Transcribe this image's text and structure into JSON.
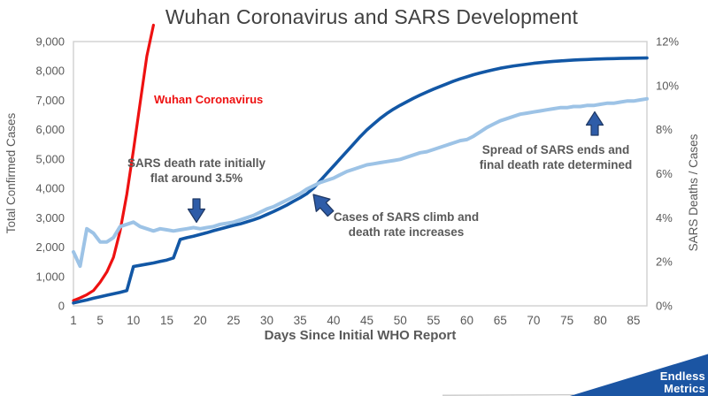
{
  "page": {
    "title": "Wuhan Coronavirus and SARS Development"
  },
  "chart_data": {
    "type": "line",
    "title": "Wuhan Coronavirus and SARS Development",
    "xlabel": "Days Since Initial WHO Report",
    "ylabel_left": "Total Confirmed Cases",
    "ylabel_right": "SARS Deaths / Cases",
    "xlim": [
      1,
      87
    ],
    "x_ticks": [
      1,
      5,
      10,
      15,
      20,
      25,
      30,
      35,
      40,
      45,
      50,
      55,
      60,
      65,
      70,
      75,
      80,
      85
    ],
    "ylim_left": [
      0,
      9000
    ],
    "y_step_left": 1000,
    "y_ticks_left": [
      "0",
      "1,000",
      "2,000",
      "3,000",
      "4,000",
      "5,000",
      "6,000",
      "7,000",
      "8,000",
      "9,000"
    ],
    "ylim_right": [
      0,
      12
    ],
    "y_step_right": 2,
    "y_ticks_right": [
      "0%",
      "2%",
      "4%",
      "6%",
      "8%",
      "10%",
      "12%"
    ],
    "grid": false,
    "legend": "none",
    "series": [
      {
        "id": "wuhan-coronavirus",
        "name": "Wuhan Coronavirus",
        "axis": "left",
        "color": "#EE1111",
        "stroke_width": 3.2,
        "x_start": 1,
        "values": [
          180,
          270,
          380,
          520,
          800,
          1150,
          1650,
          2550,
          3800,
          5300,
          6900,
          8500,
          9560
        ]
      },
      {
        "id": "sars-cases",
        "name": "SARS Total Confirmed Cases",
        "axis": "left",
        "color": "#1257A5",
        "stroke_width": 3.6,
        "x_start": 1,
        "values": [
          100,
          150,
          200,
          260,
          310,
          360,
          410,
          460,
          520,
          1340,
          1380,
          1420,
          1460,
          1510,
          1560,
          1630,
          2260,
          2320,
          2370,
          2430,
          2490,
          2560,
          2620,
          2680,
          2740,
          2790,
          2860,
          2930,
          3010,
          3110,
          3210,
          3320,
          3430,
          3560,
          3680,
          3820,
          4010,
          4260,
          4510,
          4760,
          5010,
          5260,
          5510,
          5760,
          5990,
          6190,
          6380,
          6550,
          6700,
          6830,
          6950,
          7070,
          7180,
          7280,
          7380,
          7470,
          7560,
          7650,
          7730,
          7800,
          7870,
          7930,
          7990,
          8040,
          8090,
          8130,
          8170,
          8200,
          8230,
          8260,
          8285,
          8305,
          8325,
          8340,
          8355,
          8370,
          8380,
          8390,
          8400,
          8408,
          8415,
          8420,
          8425,
          8430,
          8435,
          8438,
          8440
        ]
      },
      {
        "id": "sars-death-rate",
        "name": "SARS Deaths / Cases (%)",
        "axis": "right",
        "color": "#9DC3E6",
        "stroke_width": 4,
        "x_start": 1,
        "values": [
          2.45,
          1.8,
          3.5,
          3.3,
          2.9,
          2.9,
          3.1,
          3.6,
          3.7,
          3.8,
          3.6,
          3.5,
          3.4,
          3.5,
          3.45,
          3.4,
          3.45,
          3.5,
          3.55,
          3.5,
          3.55,
          3.6,
          3.7,
          3.75,
          3.8,
          3.9,
          4.0,
          4.1,
          4.25,
          4.4,
          4.5,
          4.65,
          4.8,
          4.95,
          5.1,
          5.3,
          5.45,
          5.6,
          5.7,
          5.8,
          5.95,
          6.1,
          6.2,
          6.3,
          6.4,
          6.45,
          6.5,
          6.55,
          6.6,
          6.65,
          6.75,
          6.85,
          6.95,
          7.0,
          7.1,
          7.2,
          7.3,
          7.4,
          7.5,
          7.55,
          7.7,
          7.9,
          8.1,
          8.25,
          8.4,
          8.5,
          8.6,
          8.7,
          8.75,
          8.8,
          8.85,
          8.9,
          8.95,
          9.0,
          9.0,
          9.05,
          9.05,
          9.1,
          9.1,
          9.15,
          9.2,
          9.2,
          9.25,
          9.3,
          9.3,
          9.35,
          9.4
        ]
      }
    ],
    "annotations": [
      {
        "id": "sars-flat",
        "lines": [
          "SARS death rate initially",
          "flat around 3.5%"
        ],
        "arrow": "down"
      },
      {
        "id": "sars-climb",
        "lines": [
          "Cases of SARS climb and",
          "death rate increases"
        ],
        "arrow": "up-left"
      },
      {
        "id": "sars-end",
        "lines": [
          "Spread of SARS ends and",
          "final death rate determined"
        ],
        "arrow": "up"
      }
    ]
  },
  "logo": {
    "line1": "Endless",
    "line2": "Metrics"
  },
  "colors": {
    "red": "#EE1111",
    "sars_blue": "#1257A5",
    "rate_blue": "#9DC3E6",
    "arrow_fill": "#2E5CA8",
    "arrow_stroke": "#1F3864",
    "frame": "#D0D0D0",
    "tick_text": "#595959",
    "title_text": "#404040",
    "logo_blue": "#1B55A3"
  }
}
